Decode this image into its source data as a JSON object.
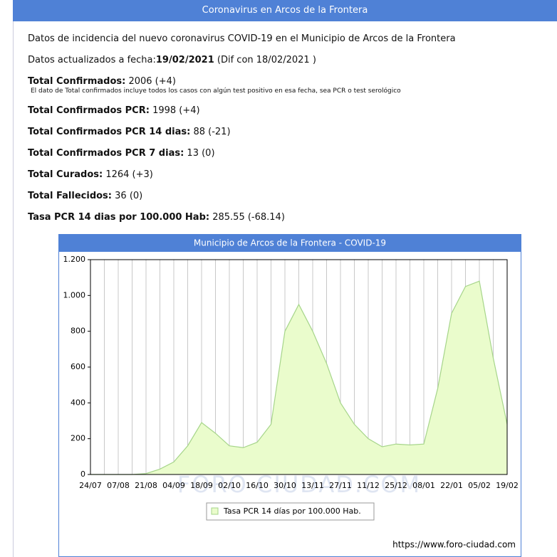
{
  "header": {
    "title": "Coronavirus en Arcos de la Frontera"
  },
  "intro": "Datos de incidencia del nuevo coronavirus COVID-19 en el Municipio de Arcos de la Frontera",
  "updated": {
    "label": "Datos actualizados a fecha:",
    "date": "19/02/2021",
    "diff": "(Dif con 18/02/2021 )"
  },
  "stats": [
    {
      "label": "Total Confirmados:",
      "value": "2006 (+4)",
      "note": "El dato de Total confirmados incluye todos los casos con algún test positivo en esa fecha, sea PCR o test serológico"
    },
    {
      "label": "Total Confirmados PCR:",
      "value": "1998 (+4)"
    },
    {
      "label": "Total Confirmados PCR 14 dias:",
      "value": "88 (-21)"
    },
    {
      "label": "Total Confirmados PCR 7 dias:",
      "value": "13 (0)"
    },
    {
      "label": "Total Curados:",
      "value": "1264 (+3)"
    },
    {
      "label": "Total Fallecidos:",
      "value": "36 (0)"
    },
    {
      "label": "Tasa PCR 14 dias por 100.000 Hab:",
      "value": "285.55 (-68.14)"
    }
  ],
  "chart_data": {
    "type": "area",
    "title": "Municipio de Arcos de la Frontera - COVID-19",
    "categories": [
      "24/07",
      null,
      "07/08",
      null,
      "21/08",
      null,
      "04/09",
      null,
      "18/09",
      null,
      "02/10",
      null,
      "16/10",
      null,
      "30/10",
      null,
      "13/11",
      null,
      "27/11",
      null,
      "11/12",
      null,
      "25/12",
      null,
      "08/01",
      null,
      "22/01",
      null,
      "05/02",
      null,
      "19/02"
    ],
    "series": [
      {
        "name": "Tasa PCR 14 días por 100.000 Hab.",
        "color": "#a6d58a",
        "values": [
          0,
          0,
          0,
          0,
          5,
          30,
          70,
          160,
          290,
          230,
          160,
          150,
          180,
          280,
          800,
          950,
          800,
          620,
          400,
          280,
          200,
          155,
          170,
          165,
          170,
          480,
          900,
          1050,
          1080,
          650,
          280
        ]
      }
    ],
    "ylim": [
      0,
      1200
    ],
    "yticks": [
      0,
      200,
      400,
      600,
      800,
      {
        "value": 1000,
        "label": "1.000"
      },
      {
        "value": 1200,
        "label": "1.200"
      }
    ],
    "grid": true,
    "legend": "bottom",
    "watermark": "FORO CIUDAD.COM",
    "source": "https://www.foro-ciudad.com"
  }
}
